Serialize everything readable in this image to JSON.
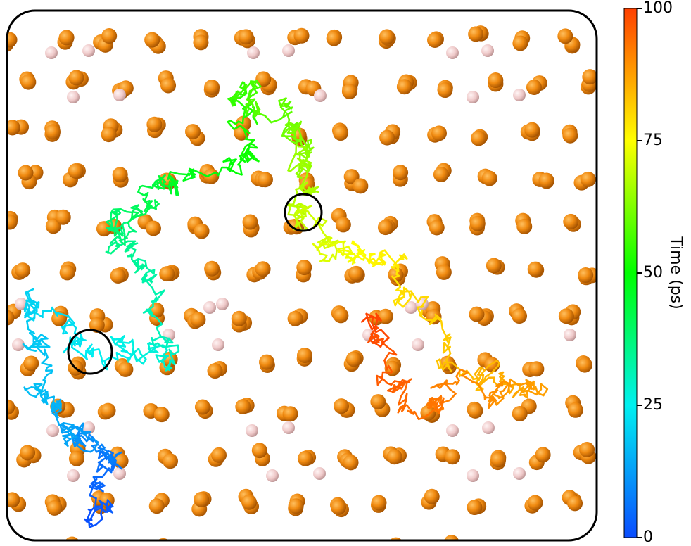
{
  "chart_data": {
    "type": "colorbar",
    "colorbar": {
      "label": "Time (ps)",
      "lim": [
        0,
        100
      ],
      "ticks": [
        0,
        25,
        50,
        75,
        100
      ],
      "colors": [
        "#0a4cff",
        "#00f0f0",
        "#00ff00",
        "#ffff00",
        "#ff4000"
      ]
    }
  }
}
